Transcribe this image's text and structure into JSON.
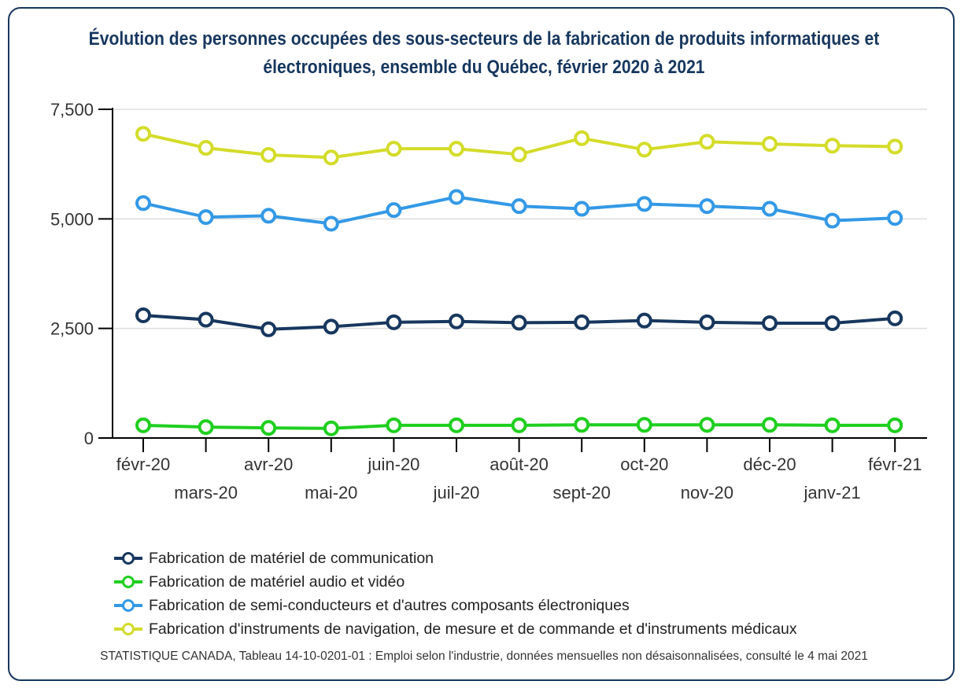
{
  "chart_data": {
    "type": "line",
    "title": "Évolution des personnes occupées des sous-secteurs de la fabrication de produits informatiques et électroniques, ensemble du Québec, février 2020 à 2021",
    "categories": [
      "févr-20",
      "mars-20",
      "avr-20",
      "mai-20",
      "juin-20",
      "juil-20",
      "août-20",
      "sept-20",
      "oct-20",
      "nov-20",
      "déc-20",
      "janv-21",
      "févr-21"
    ],
    "yticks": [
      "0",
      "2,500",
      "5,000",
      "7,500"
    ],
    "ylim": [
      0,
      7500
    ],
    "grid": true,
    "legend_placement": "bottom",
    "series": [
      {
        "name": "Fabrication de matériel de communication",
        "color": "#17375e",
        "values": [
          2800,
          2700,
          2480,
          2540,
          2640,
          2660,
          2630,
          2640,
          2680,
          2640,
          2620,
          2620,
          2730
        ]
      },
      {
        "name": "Fabrication de matériel audio et vidéo",
        "color": "#1fcf1f",
        "values": [
          290,
          250,
          230,
          220,
          290,
          290,
          290,
          300,
          300,
          300,
          300,
          290,
          290
        ]
      },
      {
        "name": "Fabrication de semi-conducteurs et d'autres composants électroniques",
        "color": "#3399e6",
        "values": [
          5360,
          5040,
          5070,
          4890,
          5200,
          5500,
          5290,
          5230,
          5340,
          5290,
          5230,
          4960,
          5020
        ]
      },
      {
        "name": "Fabrication d'instruments de navigation, de mesure et de commande et d'instruments médicaux",
        "color": "#d4dc2a",
        "values": [
          6940,
          6620,
          6460,
          6400,
          6600,
          6600,
          6470,
          6840,
          6580,
          6760,
          6710,
          6670,
          6650
        ]
      }
    ]
  },
  "source": "STATISTIQUE CANADA, Tableau 14-10-0201-01 : Emploi selon l'industrie, données mensuelles non désaisonnalisées, consulté le 4 mai 2021"
}
